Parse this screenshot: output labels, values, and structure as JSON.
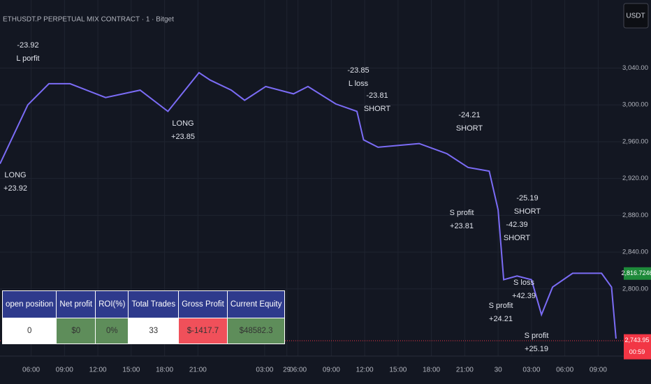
{
  "header": {
    "symbol": "ETHUSDT.P PERPETUAL MIX CONTRACT · 1 · Bitget",
    "currency": "USDT"
  },
  "chart_data": {
    "type": "line",
    "x": [
      3.2,
      5.7,
      7.6,
      9.5,
      12.7,
      15.8,
      18.3,
      21.1,
      22.1,
      24.0,
      25.2,
      27.1,
      29.6,
      30.9,
      33.4,
      35.3,
      35.9,
      37.2,
      40.9,
      43.4,
      45.3,
      47.2,
      48.0,
      48.5,
      49.7,
      51.0,
      51.9,
      52.9,
      54.7,
      57.3,
      58.2,
      58.6
    ],
    "series": [
      {
        "color": "#7b6cf6",
        "values": [
          2936,
          3000,
          3023,
          3023,
          3008,
          3016,
          2993,
          3035,
          3027,
          3016,
          3005,
          3020,
          3012,
          3020,
          3001,
          2993,
          2962,
          2954,
          2958,
          2947,
          2932,
          2928,
          2886,
          2810,
          2814,
          2810,
          2772,
          2802,
          2817,
          2817,
          2802,
          2746
        ]
      }
    ],
    "xlim": [
      3.2,
      59.3
    ],
    "ylim": [
      2727,
      3114
    ],
    "xticks": [
      {
        "value": 6,
        "label": "06:00"
      },
      {
        "value": 9,
        "label": "09:00"
      },
      {
        "value": 12,
        "label": "12:00"
      },
      {
        "value": 15,
        "label": "15:00"
      },
      {
        "value": 18,
        "label": "18:00"
      },
      {
        "value": 21,
        "label": "21:00"
      },
      29,
      {
        "value": 27,
        "label": "03:00"
      },
      {
        "value": 30,
        "label": "06:00"
      },
      {
        "value": 33,
        "label": "09:00"
      },
      {
        "value": 36,
        "label": "12:00"
      },
      {
        "value": 39,
        "label": "15:00"
      },
      {
        "value": 42,
        "label": "18:00"
      },
      {
        "value": 45,
        "label": "21:00"
      },
      {
        "value": 48,
        "label": "30"
      },
      {
        "value": 51,
        "label": "03:00"
      },
      {
        "value": 54,
        "label": "06:00"
      },
      {
        "value": 57,
        "label": "09:00"
      }
    ],
    "yticks": [
      {
        "value": 3040,
        "label": "3,040.00"
      },
      {
        "value": 3000,
        "label": "3,000.00"
      },
      {
        "value": 2960,
        "label": "2,960.00"
      },
      {
        "value": 2920,
        "label": "2,920.00"
      },
      {
        "value": 2880,
        "label": "2,880.00"
      },
      {
        "value": 2840,
        "label": "2,840.00"
      },
      {
        "value": 2800,
        "label": "2,800.00"
      }
    ],
    "grid": true,
    "price_tags": [
      {
        "value": 2816.7246,
        "label": "2,816.7246",
        "color": "#1e8a3a"
      },
      {
        "value": 2743.95,
        "label": "2,743.95",
        "color": "#f23645",
        "timer": "00:59"
      }
    ],
    "annotations": [
      [
        "-23.92",
        "L porfit"
      ],
      [
        "LONG",
        "+23.92"
      ],
      [
        "LONG",
        "+23.85"
      ],
      [
        "-23.85",
        "L loss"
      ],
      [
        "-23.81",
        "SHORT"
      ],
      [
        "-24.21",
        "SHORT"
      ],
      [
        "S profit",
        "+23.81"
      ],
      [
        "-25.19",
        "SHORT"
      ],
      [
        "-42.39",
        "SHORT"
      ],
      [
        "S loss",
        "+42.39"
      ],
      [
        "S profit",
        "+24.21"
      ],
      [
        "S profit",
        "+25.19"
      ]
    ]
  },
  "table": {
    "headers": [
      "open position",
      "Net profit",
      "ROI(%)",
      "Total Trades",
      "Gross Profit",
      "Current Equity"
    ],
    "row": [
      "0",
      "$0",
      "0%",
      "33",
      "$-1417.7",
      "$48582.3"
    ]
  }
}
